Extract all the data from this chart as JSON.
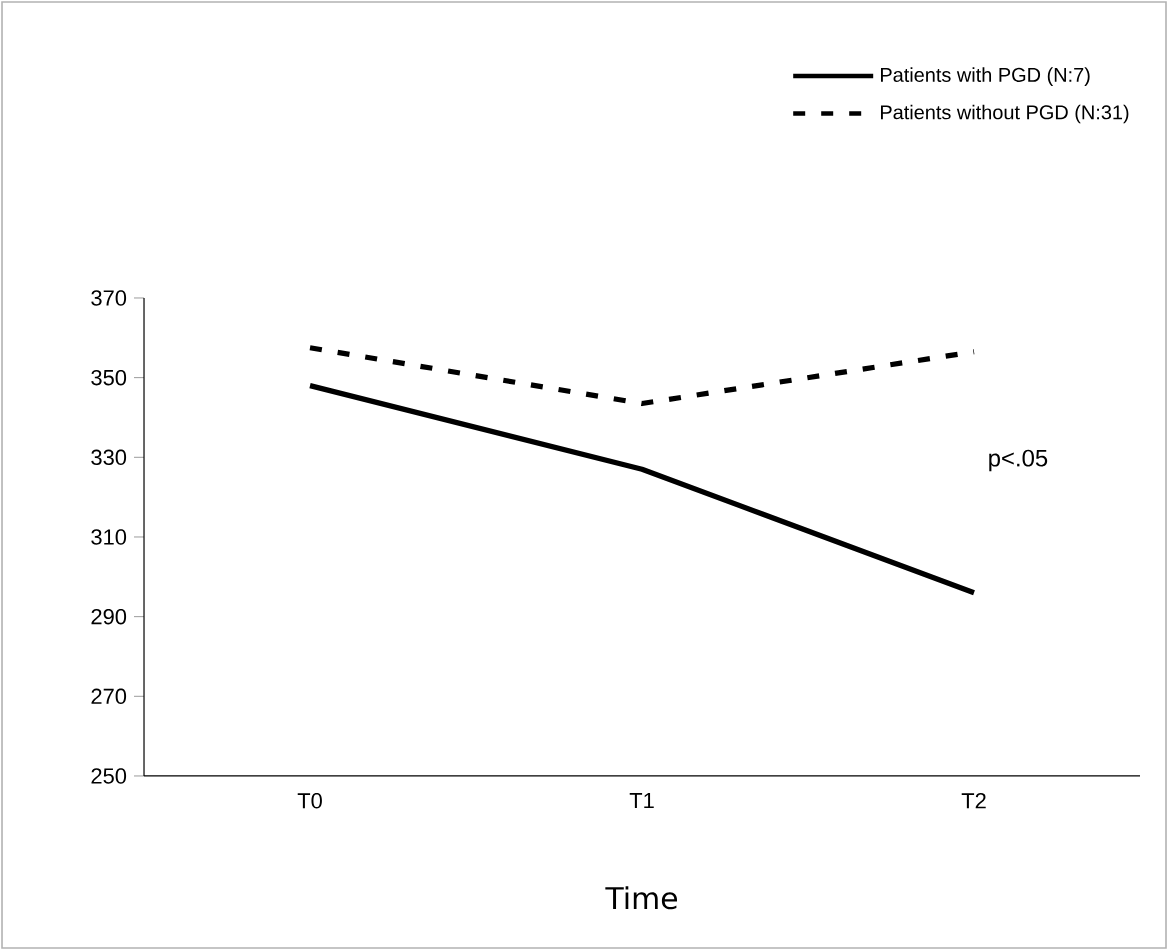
{
  "chart_data": {
    "type": "line",
    "xlabel": "Time",
    "categories": [
      "T0",
      "T1",
      "T2"
    ],
    "series": [
      {
        "name": "Patients with PGD (N:7)",
        "color": "#000000",
        "line_style": "solid",
        "values": [
          348,
          327,
          296
        ]
      },
      {
        "name": "Patients without PGD (N:31)",
        "color": "#000000",
        "line_style": "dashed",
        "values": [
          357.5,
          343.5,
          356.5
        ]
      }
    ],
    "ylim": [
      250,
      370
    ],
    "yticks": [
      250,
      270,
      290,
      310,
      330,
      350,
      370
    ],
    "annotations": [
      "p<.05"
    ],
    "legend": "top right",
    "grid": false,
    "marker": "none"
  }
}
